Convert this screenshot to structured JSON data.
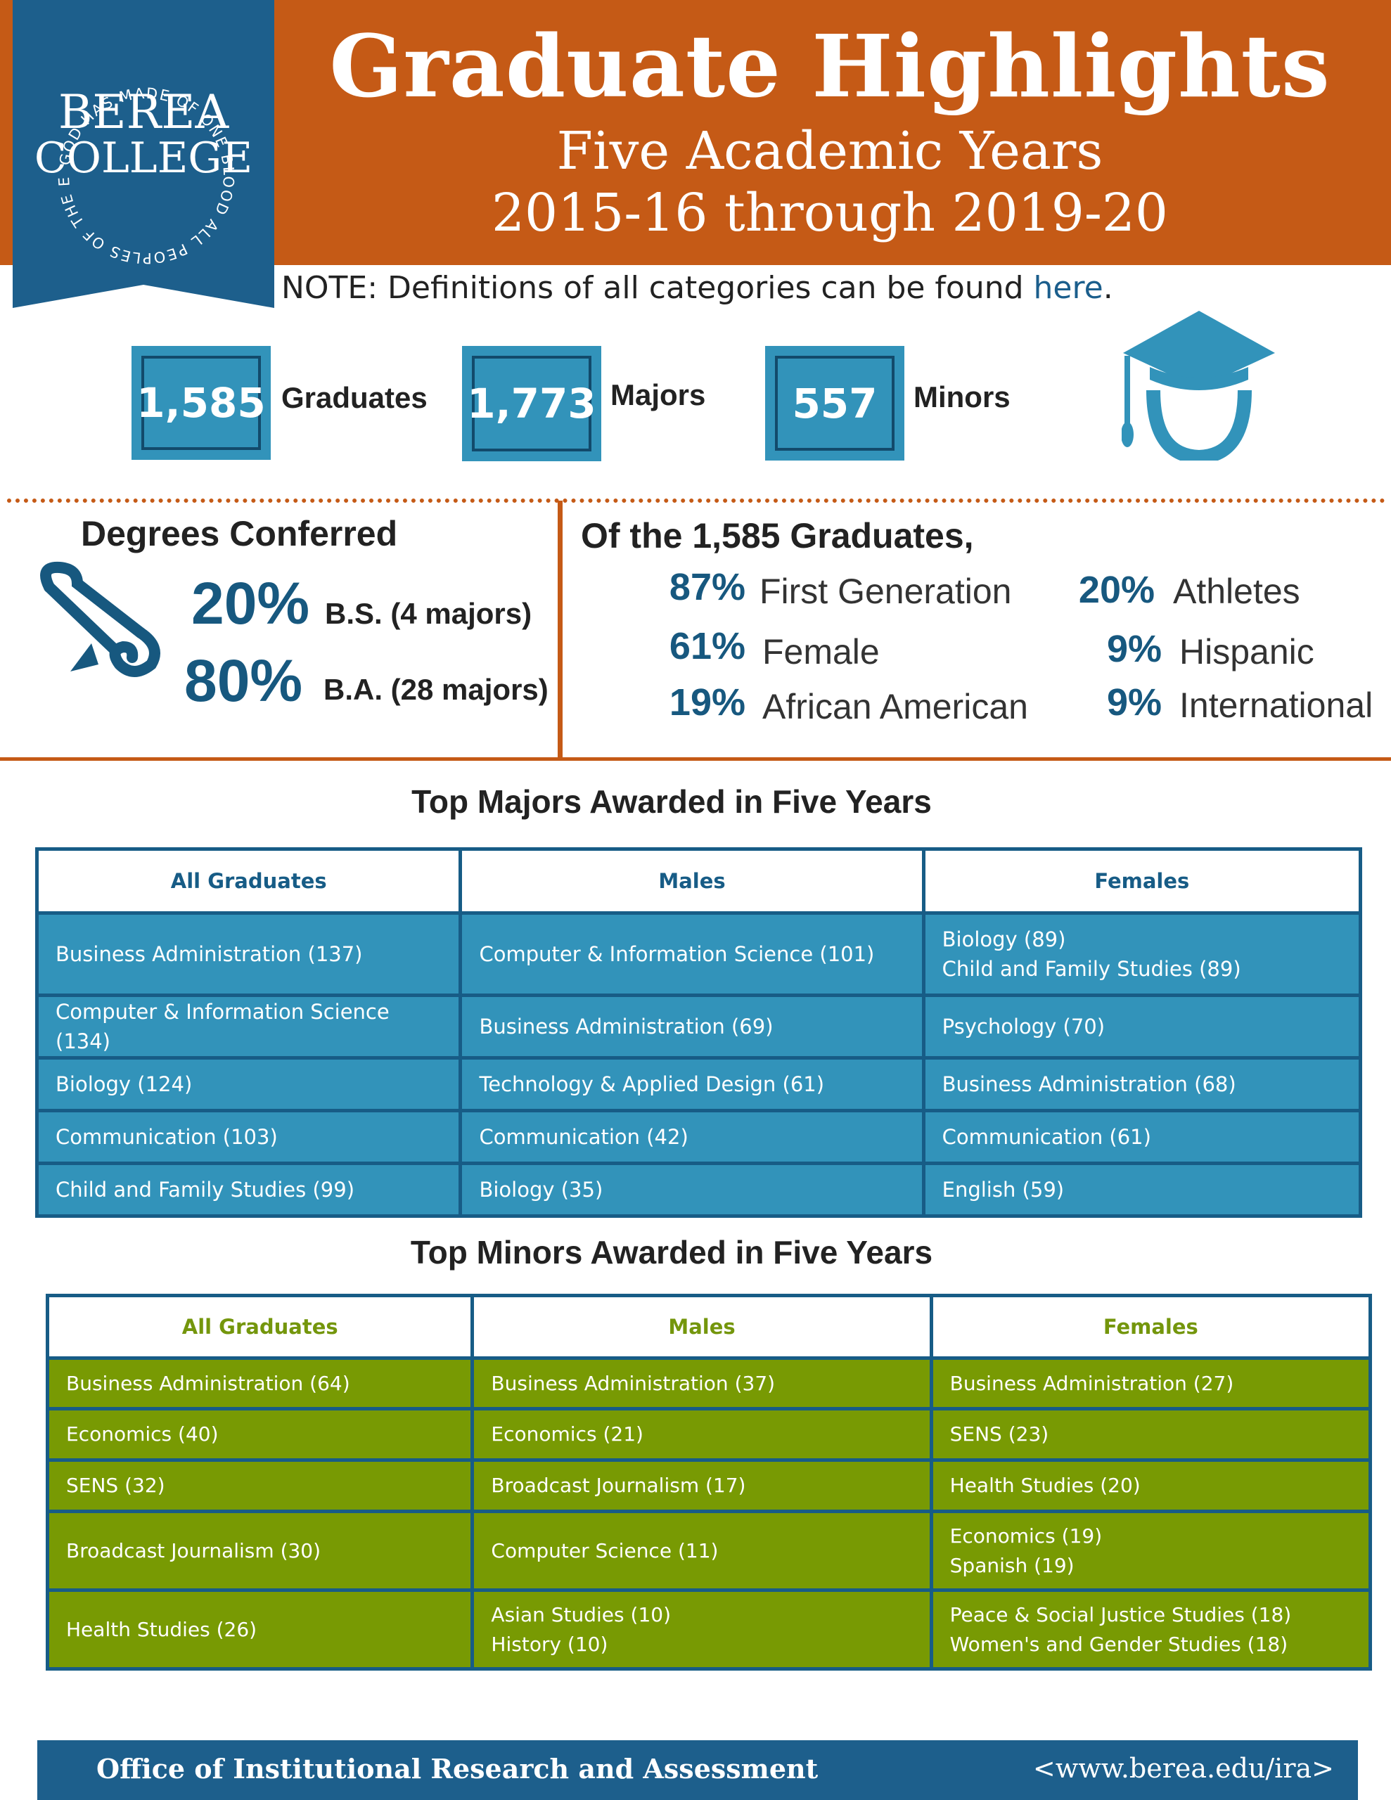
{
  "header": {
    "title": "Graduate Highlights",
    "subtitle1": "Five Academic Years",
    "subtitle2": "2015-16 through 2019-20",
    "logo_name1": "BEREA",
    "logo_name2": "COLLEGE",
    "logo_motto": "GOD HAS MADE OF ONE BLOOD ALL PEOPLES OF THE EARTH"
  },
  "note": {
    "text": "NOTE: Definitions of all categories can be found ",
    "link": "here",
    "end": "."
  },
  "stats": [
    {
      "value": "1,585",
      "label": "Graduates"
    },
    {
      "value": "1,773",
      "label": "Majors"
    },
    {
      "value": "557",
      "label": "Minors"
    }
  ],
  "degrees": {
    "heading": "Degrees Conferred",
    "bs_pct": "20%",
    "bs_label": "B.S. (4 majors)",
    "ba_pct": "80%",
    "ba_label": "B.A. (28 majors)"
  },
  "demographics": {
    "heading": "Of the 1,585 Graduates,",
    "items": [
      {
        "pct": "87%",
        "label": "First Generation"
      },
      {
        "pct": "61%",
        "label": "Female"
      },
      {
        "pct": "19%",
        "label": "African American"
      },
      {
        "pct": "20%",
        "label": "Athletes"
      },
      {
        "pct": "9%",
        "label": "Hispanic"
      },
      {
        "pct": "9%",
        "label": "International"
      }
    ]
  },
  "majors": {
    "title": "Top Majors Awarded in Five Years",
    "headers": [
      "All Graduates",
      "Males",
      "Females"
    ],
    "rows": [
      [
        [
          "Business Administration (137)"
        ],
        [
          "Computer & Information Science (101)"
        ],
        [
          "Biology (89)",
          "Child and Family Studies (89)"
        ]
      ],
      [
        [
          "Computer & Information Science (134)"
        ],
        [
          "Business Administration (69)"
        ],
        [
          "Psychology (70)"
        ]
      ],
      [
        [
          "Biology (124)"
        ],
        [
          "Technology & Applied Design (61)"
        ],
        [
          "Business Administration (68)"
        ]
      ],
      [
        [
          "Communication (103)"
        ],
        [
          "Communication (42)"
        ],
        [
          "Communication (61)"
        ]
      ],
      [
        [
          "Child and Family Studies (99)"
        ],
        [
          "Biology (35)"
        ],
        [
          "English (59)"
        ]
      ]
    ]
  },
  "minors": {
    "title": "Top Minors Awarded in Five Years",
    "headers": [
      "All Graduates",
      "Males",
      "Females"
    ],
    "rows": [
      [
        [
          "Business Administration (64)"
        ],
        [
          "Business Administration (37)"
        ],
        [
          "Business Administration (27)"
        ]
      ],
      [
        [
          "Economics (40)"
        ],
        [
          "Economics (21)"
        ],
        [
          "SENS (23)"
        ]
      ],
      [
        [
          "SENS (32)"
        ],
        [
          "Broadcast Journalism (17)"
        ],
        [
          "Health Studies (20)"
        ]
      ],
      [
        [
          "Broadcast Journalism (30)"
        ],
        [
          "Computer Science (11)"
        ],
        [
          "Economics (19)",
          "Spanish (19)"
        ]
      ],
      [
        [
          "Health Studies (26)"
        ],
        [
          "Asian Studies (10)",
          "History (10)"
        ],
        [
          "Peace & Social Justice Studies (18)",
          "Women's and Gender Studies (18)"
        ]
      ]
    ]
  },
  "footer": {
    "left": "Office of Institutional Research and Assessment",
    "right": "<www.berea.edu/ira>"
  },
  "colors": {
    "orange": "#c55a16",
    "blue": "#3293ba",
    "navy": "#175c86",
    "green": "#789a03"
  }
}
